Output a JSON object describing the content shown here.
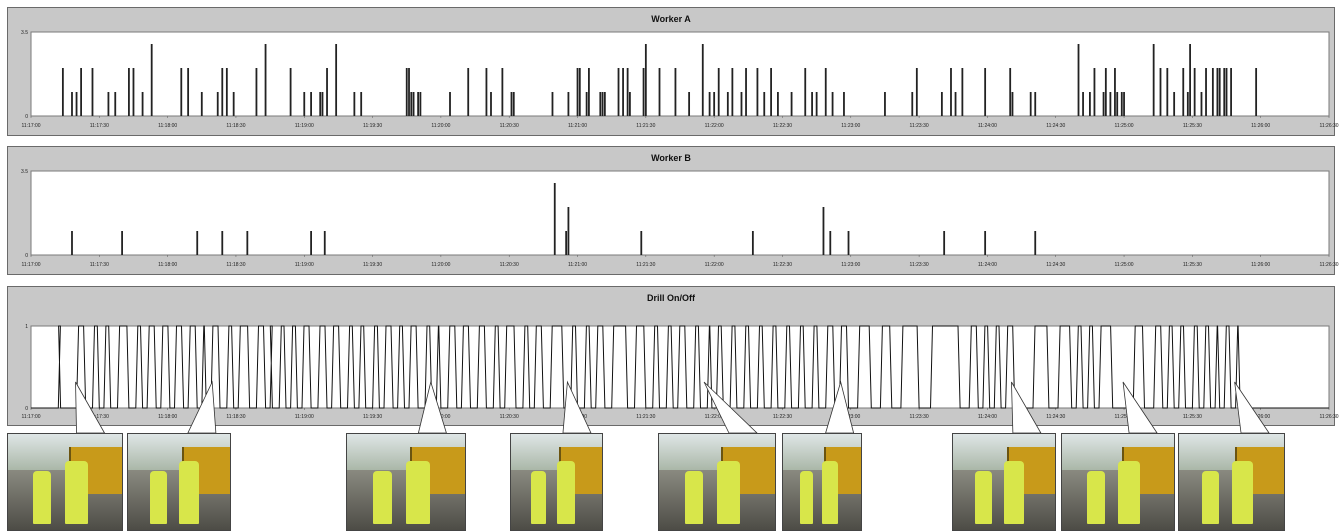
{
  "chart_data": [
    {
      "type": "bar",
      "title": "Worker A",
      "y_ticks": [
        "3.5",
        "0"
      ],
      "ylim": [
        0,
        3.5
      ],
      "x_ticks": [
        "11:17:00",
        "11:17:30",
        "11:18:00",
        "11:18:30",
        "11:19:00",
        "11:19:30",
        "11:20:00",
        "11:20:30",
        "11:21:00",
        "11:21:30",
        "11:22:00",
        "11:22:30",
        "11:23:00",
        "11:23:30",
        "11:24:00",
        "11:24:30",
        "11:25:00",
        "11:25:30",
        "11:26:00",
        "11:26:30"
      ],
      "xlim_seconds": [
        0,
        570
      ],
      "events": [
        {
          "t": 14,
          "v": 2
        },
        {
          "t": 18,
          "v": 1
        },
        {
          "t": 20,
          "v": 1
        },
        {
          "t": 22,
          "v": 2
        },
        {
          "t": 27,
          "v": 2
        },
        {
          "t": 34,
          "v": 1
        },
        {
          "t": 37,
          "v": 1
        },
        {
          "t": 43,
          "v": 2
        },
        {
          "t": 45,
          "v": 2
        },
        {
          "t": 49,
          "v": 1
        },
        {
          "t": 53,
          "v": 3
        },
        {
          "t": 66,
          "v": 2
        },
        {
          "t": 69,
          "v": 2
        },
        {
          "t": 75,
          "v": 1
        },
        {
          "t": 82,
          "v": 1
        },
        {
          "t": 84,
          "v": 2
        },
        {
          "t": 86,
          "v": 2
        },
        {
          "t": 89,
          "v": 1
        },
        {
          "t": 99,
          "v": 2
        },
        {
          "t": 103,
          "v": 3
        },
        {
          "t": 114,
          "v": 2
        },
        {
          "t": 120,
          "v": 1
        },
        {
          "t": 123,
          "v": 1
        },
        {
          "t": 127,
          "v": 1
        },
        {
          "t": 128,
          "v": 1
        },
        {
          "t": 130,
          "v": 2
        },
        {
          "t": 134,
          "v": 3
        },
        {
          "t": 142,
          "v": 1
        },
        {
          "t": 145,
          "v": 1
        },
        {
          "t": 165,
          "v": 2
        },
        {
          "t": 166,
          "v": 2
        },
        {
          "t": 167,
          "v": 1
        },
        {
          "t": 168,
          "v": 1
        },
        {
          "t": 170,
          "v": 1
        },
        {
          "t": 171,
          "v": 1
        },
        {
          "t": 184,
          "v": 1
        },
        {
          "t": 192,
          "v": 2
        },
        {
          "t": 200,
          "v": 2
        },
        {
          "t": 202,
          "v": 1
        },
        {
          "t": 207,
          "v": 2
        },
        {
          "t": 211,
          "v": 1
        },
        {
          "t": 212,
          "v": 1
        },
        {
          "t": 229,
          "v": 1
        },
        {
          "t": 236,
          "v": 1
        },
        {
          "t": 240,
          "v": 2
        },
        {
          "t": 241,
          "v": 2
        },
        {
          "t": 244,
          "v": 1
        },
        {
          "t": 245,
          "v": 2
        },
        {
          "t": 250,
          "v": 1
        },
        {
          "t": 251,
          "v": 1
        },
        {
          "t": 252,
          "v": 1
        },
        {
          "t": 258,
          "v": 2
        },
        {
          "t": 260,
          "v": 2
        },
        {
          "t": 262,
          "v": 2
        },
        {
          "t": 263,
          "v": 1
        },
        {
          "t": 269,
          "v": 2
        },
        {
          "t": 270,
          "v": 3
        },
        {
          "t": 276,
          "v": 2
        },
        {
          "t": 283,
          "v": 2
        },
        {
          "t": 289,
          "v": 1
        },
        {
          "t": 295,
          "v": 3
        },
        {
          "t": 298,
          "v": 1
        },
        {
          "t": 300,
          "v": 1
        },
        {
          "t": 302,
          "v": 2
        },
        {
          "t": 306,
          "v": 1
        },
        {
          "t": 308,
          "v": 2
        },
        {
          "t": 312,
          "v": 1
        },
        {
          "t": 314,
          "v": 2
        },
        {
          "t": 319,
          "v": 2
        },
        {
          "t": 322,
          "v": 1
        },
        {
          "t": 325,
          "v": 2
        },
        {
          "t": 328,
          "v": 1
        },
        {
          "t": 334,
          "v": 1
        },
        {
          "t": 340,
          "v": 2
        },
        {
          "t": 343,
          "v": 1
        },
        {
          "t": 345,
          "v": 1
        },
        {
          "t": 349,
          "v": 2
        },
        {
          "t": 352,
          "v": 1
        },
        {
          "t": 357,
          "v": 1
        },
        {
          "t": 375,
          "v": 1
        },
        {
          "t": 387,
          "v": 1
        },
        {
          "t": 389,
          "v": 2
        },
        {
          "t": 400,
          "v": 1
        },
        {
          "t": 404,
          "v": 2
        },
        {
          "t": 406,
          "v": 1
        },
        {
          "t": 409,
          "v": 2
        },
        {
          "t": 419,
          "v": 2
        },
        {
          "t": 430,
          "v": 2
        },
        {
          "t": 431,
          "v": 1
        },
        {
          "t": 439,
          "v": 1
        },
        {
          "t": 441,
          "v": 1
        },
        {
          "t": 460,
          "v": 3
        },
        {
          "t": 462,
          "v": 1
        },
        {
          "t": 465,
          "v": 1
        },
        {
          "t": 467,
          "v": 2
        },
        {
          "t": 471,
          "v": 1
        },
        {
          "t": 472,
          "v": 2
        },
        {
          "t": 474,
          "v": 1
        },
        {
          "t": 476,
          "v": 2
        },
        {
          "t": 477,
          "v": 1
        },
        {
          "t": 479,
          "v": 1
        },
        {
          "t": 480,
          "v": 1
        },
        {
          "t": 493,
          "v": 3
        },
        {
          "t": 496,
          "v": 2
        },
        {
          "t": 499,
          "v": 2
        },
        {
          "t": 502,
          "v": 1
        },
        {
          "t": 506,
          "v": 2
        },
        {
          "t": 508,
          "v": 1
        },
        {
          "t": 509,
          "v": 3
        },
        {
          "t": 511,
          "v": 2
        },
        {
          "t": 514,
          "v": 1
        },
        {
          "t": 516,
          "v": 2
        },
        {
          "t": 519,
          "v": 2
        },
        {
          "t": 521,
          "v": 2
        },
        {
          "t": 522,
          "v": 2
        },
        {
          "t": 524,
          "v": 2
        },
        {
          "t": 525,
          "v": 2
        },
        {
          "t": 527,
          "v": 2
        },
        {
          "t": 538,
          "v": 2
        }
      ]
    },
    {
      "type": "bar",
      "title": "Worker B",
      "y_ticks": [
        "3.5",
        "0"
      ],
      "ylim": [
        0,
        3.5
      ],
      "x_ticks": [
        "11:17:00",
        "11:17:30",
        "11:18:00",
        "11:18:30",
        "11:19:00",
        "11:19:30",
        "11:20:00",
        "11:20:30",
        "11:21:00",
        "11:21:30",
        "11:22:00",
        "11:22:30",
        "11:23:00",
        "11:23:30",
        "11:24:00",
        "11:24:30",
        "11:25:00",
        "11:25:30",
        "11:26:00",
        "11:26:30"
      ],
      "xlim_seconds": [
        0,
        570
      ],
      "events": [
        {
          "t": 18,
          "v": 1
        },
        {
          "t": 40,
          "v": 1
        },
        {
          "t": 73,
          "v": 1
        },
        {
          "t": 84,
          "v": 1
        },
        {
          "t": 95,
          "v": 1
        },
        {
          "t": 123,
          "v": 1
        },
        {
          "t": 129,
          "v": 1
        },
        {
          "t": 230,
          "v": 3
        },
        {
          "t": 235,
          "v": 1
        },
        {
          "t": 236,
          "v": 2
        },
        {
          "t": 268,
          "v": 1
        },
        {
          "t": 317,
          "v": 1
        },
        {
          "t": 348,
          "v": 2
        },
        {
          "t": 351,
          "v": 1
        },
        {
          "t": 359,
          "v": 1
        },
        {
          "t": 401,
          "v": 1
        },
        {
          "t": 419,
          "v": 1
        },
        {
          "t": 441,
          "v": 1
        }
      ]
    },
    {
      "type": "line",
      "title": "Drill On/Off",
      "y_ticks": [
        "1",
        "0"
      ],
      "ylim": [
        0,
        1
      ],
      "x_ticks": [
        "11:17:00",
        "11:17:30",
        "11:18:00",
        "11:18:30",
        "11:19:00",
        "11:19:30",
        "11:20:00",
        "11:20:30",
        "11:21:00",
        "11:21:30",
        "11:22:00",
        "11:22:30",
        "11:23:00",
        "11:23:30",
        "11:24:00",
        "11:24:30",
        "11:25:00",
        "11:25:30",
        "11:26:00",
        "11:26:30"
      ],
      "xlim_seconds": [
        0,
        570
      ],
      "on_intervals": [
        [
          12,
          13
        ],
        [
          20,
          24
        ],
        [
          27,
          30
        ],
        [
          32,
          35
        ],
        [
          38,
          43
        ],
        [
          46,
          49
        ],
        [
          51,
          55
        ],
        [
          57,
          61
        ],
        [
          63,
          67
        ],
        [
          69,
          73
        ],
        [
          75,
          77
        ],
        [
          79,
          83
        ],
        [
          86,
          89
        ],
        [
          91,
          96
        ],
        [
          99,
          103
        ],
        [
          105,
          106
        ],
        [
          109,
          112
        ],
        [
          114,
          117
        ],
        [
          119,
          123
        ],
        [
          126,
          130
        ],
        [
          132,
          136
        ],
        [
          139,
          142
        ],
        [
          144,
          147
        ],
        [
          150,
          153
        ],
        [
          155,
          159
        ],
        [
          161,
          164
        ],
        [
          166,
          170
        ],
        [
          173,
          176
        ],
        [
          178,
          180
        ],
        [
          183,
          187
        ],
        [
          189,
          193
        ],
        [
          196,
          200
        ],
        [
          203,
          206
        ],
        [
          208,
          213
        ],
        [
          216,
          219
        ],
        [
          221,
          225
        ],
        [
          228,
          234
        ],
        [
          237,
          240
        ],
        [
          243,
          246
        ],
        [
          248,
          252
        ],
        [
          255,
          262
        ],
        [
          265,
          270
        ],
        [
          273,
          276
        ],
        [
          279,
          282
        ],
        [
          284,
          288
        ],
        [
          291,
          294
        ],
        [
          297,
          299
        ],
        [
          301,
          304
        ],
        [
          307,
          310
        ],
        [
          313,
          316
        ],
        [
          319,
          322
        ],
        [
          325,
          328
        ],
        [
          331,
          334
        ],
        [
          337,
          340
        ],
        [
          343,
          346
        ],
        [
          349,
          353
        ],
        [
          355,
          359
        ],
        [
          363,
          369
        ],
        [
          373,
          378
        ],
        [
          382,
          390
        ],
        [
          395,
          408
        ],
        [
          412,
          416
        ],
        [
          418,
          421
        ],
        [
          423,
          426
        ],
        [
          428,
          432
        ],
        [
          440,
          447
        ],
        [
          451,
          457
        ],
        [
          459,
          462
        ],
        [
          464,
          467
        ],
        [
          469,
          475
        ],
        [
          484,
          489
        ],
        [
          493,
          497
        ],
        [
          499,
          502
        ],
        [
          504,
          507
        ],
        [
          510,
          513
        ],
        [
          515,
          518
        ],
        [
          520,
          522
        ],
        [
          524,
          527
        ],
        [
          529,
          531
        ]
      ]
    }
  ],
  "photos": [
    {
      "name": "photo-1",
      "anchor_t": 20
    },
    {
      "name": "photo-2",
      "anchor_t": 80
    },
    {
      "name": "photo-3",
      "anchor_t": 176
    },
    {
      "name": "photo-4",
      "anchor_t": 236
    },
    {
      "name": "photo-5",
      "anchor_t": 296
    },
    {
      "name": "photo-6",
      "anchor_t": 356
    },
    {
      "name": "photo-7",
      "anchor_t": 431
    },
    {
      "name": "photo-8",
      "anchor_t": 480
    },
    {
      "name": "photo-9",
      "anchor_t": 529
    }
  ]
}
